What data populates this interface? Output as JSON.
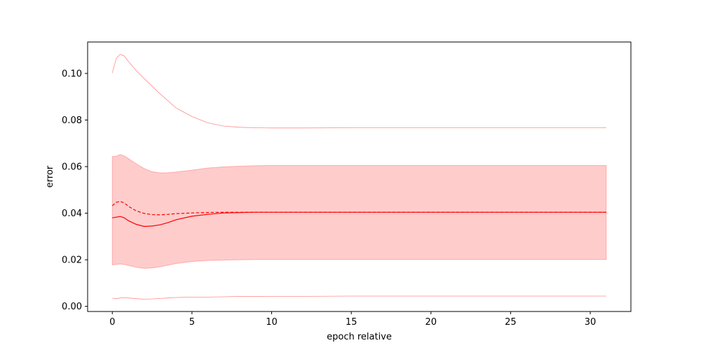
{
  "chart_data": {
    "type": "line",
    "title": "",
    "xlabel": "epoch relative",
    "ylabel": "error",
    "xlim": [
      -1.55,
      32.55
    ],
    "ylim": [
      -0.0022,
      0.1135
    ],
    "xticks": [
      0,
      5,
      10,
      15,
      20,
      25,
      30
    ],
    "yticks": [
      0.0,
      0.02,
      0.04,
      0.06,
      0.08,
      0.1
    ],
    "ytick_labels": [
      "0.00",
      "0.02",
      "0.04",
      "0.06",
      "0.08",
      "0.10"
    ],
    "grid": false,
    "color": "#ff0000",
    "x": [
      0,
      0.25,
      0.5,
      0.75,
      1,
      1.5,
      2,
      2.5,
      3,
      3.5,
      4,
      5,
      6,
      7,
      8,
      9,
      10,
      12,
      15,
      20,
      25,
      31
    ],
    "band": {
      "lower": [
        0.0178,
        0.018,
        0.0182,
        0.018,
        0.0176,
        0.0168,
        0.0163,
        0.0165,
        0.017,
        0.0177,
        0.0184,
        0.0193,
        0.0197,
        0.0199,
        0.02,
        0.0201,
        0.0201,
        0.0201,
        0.0201,
        0.0201,
        0.0201,
        0.0201
      ],
      "upper": [
        0.0643,
        0.0645,
        0.0652,
        0.0646,
        0.0635,
        0.0612,
        0.0592,
        0.0578,
        0.0573,
        0.0574,
        0.0577,
        0.0585,
        0.0594,
        0.0599,
        0.0602,
        0.0604,
        0.0605,
        0.0605,
        0.0605,
        0.0605,
        0.0605,
        0.0605
      ]
    },
    "envelope": {
      "upper": [
        0.1002,
        0.1065,
        0.1082,
        0.1075,
        0.1052,
        0.1012,
        0.0978,
        0.0945,
        0.0912,
        0.0882,
        0.0852,
        0.0815,
        0.0788,
        0.0774,
        0.0769,
        0.0767,
        0.0766,
        0.0766,
        0.0767,
        0.0767,
        0.0767,
        0.0767
      ],
      "lower": [
        0.0035,
        0.0033,
        0.0036,
        0.0037,
        0.0036,
        0.0033,
        0.0031,
        0.0032,
        0.0034,
        0.0036,
        0.0038,
        0.004,
        0.004,
        0.0041,
        0.0043,
        0.0042,
        0.0043,
        0.0043,
        0.0044,
        0.0044,
        0.0044,
        0.0044
      ]
    },
    "series": [
      {
        "style": "solid",
        "values": [
          0.038,
          0.0383,
          0.0386,
          0.038,
          0.0368,
          0.0352,
          0.0343,
          0.0345,
          0.035,
          0.036,
          0.0372,
          0.0387,
          0.0395,
          0.0401,
          0.0403,
          0.0404,
          0.0404,
          0.0404,
          0.0404,
          0.0404,
          0.0404,
          0.0404
        ]
      },
      {
        "style": "dashed",
        "values": [
          0.0432,
          0.0447,
          0.045,
          0.0444,
          0.043,
          0.041,
          0.0399,
          0.0394,
          0.0393,
          0.0395,
          0.0398,
          0.0401,
          0.0403,
          0.0404,
          0.0404,
          0.0404,
          0.0404,
          0.0404,
          0.0404,
          0.0404,
          0.0404,
          0.0404
        ]
      }
    ]
  }
}
